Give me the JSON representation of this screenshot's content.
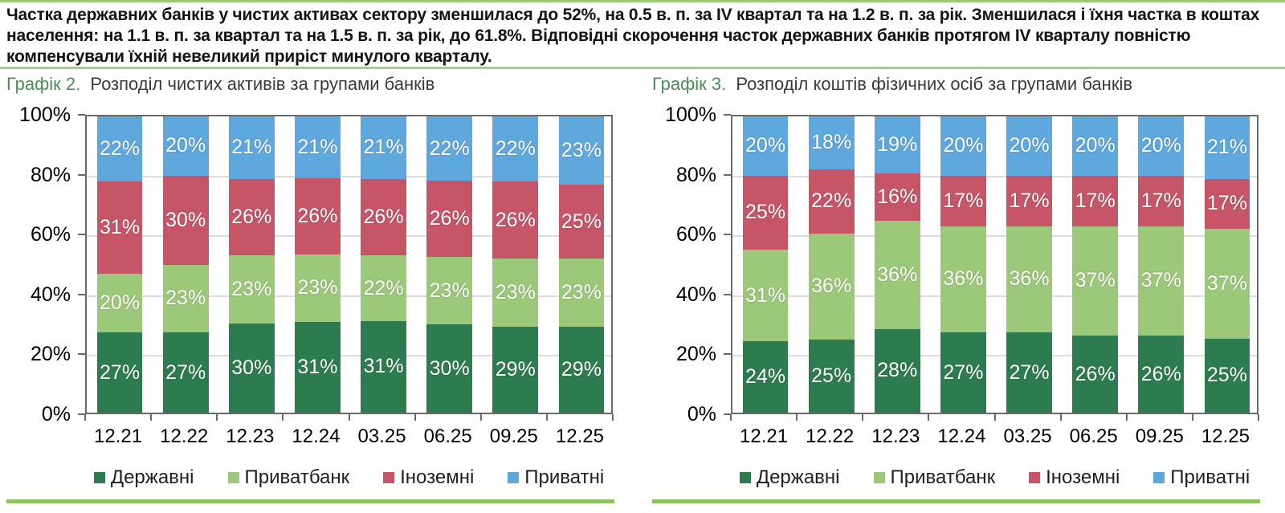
{
  "intro": {
    "text": "Частка державних банків у чистих активах сектору зменшилася до 52%, на 0.5 в. п. за IV квартал та на 1.2 в. п. за рік. Зменшилася і їхня частка в коштах населення: на 1.1 в. п. за квартал та на 1.5 в. п. за рік, до 61.8%. Відповідні скорочення часток державних банків протягом IV кварталу повністю компенсували їхній невеликий приріст минулого кварталу."
  },
  "colors": {
    "accent_green": "#4D8C57",
    "divider_green": "#9CC972",
    "bottom_bar_green": "#8FC162",
    "axis_gray": "#6A6A6A",
    "gridline_gray": "#DCDCDC",
    "state_banks": "#2D7C4F",
    "privatbank": "#9CC87A",
    "foreign_banks": "#C65568",
    "private_banks": "#5FA8DD"
  },
  "chart_data": [
    {
      "type": "bar",
      "stacked": true,
      "label": "Графік 2.",
      "title": "Розподіл чистих активів за групами банків",
      "categories": [
        "12.21",
        "12.22",
        "12.23",
        "12.24",
        "03.25",
        "06.25",
        "09.25",
        "12.25"
      ],
      "series": [
        {
          "name": "Державні",
          "color": "#2D7C4F",
          "values": [
            27,
            27,
            30,
            31,
            31,
            30,
            29,
            29
          ]
        },
        {
          "name": "Приватбанк",
          "color": "#9CC87A",
          "values": [
            20,
            23,
            23,
            23,
            22,
            23,
            23,
            23
          ]
        },
        {
          "name": "Іноземні",
          "color": "#C65568",
          "values": [
            31,
            30,
            26,
            26,
            26,
            26,
            26,
            25
          ]
        },
        {
          "name": "Приватні",
          "color": "#5FA8DD",
          "values": [
            22,
            20,
            21,
            21,
            21,
            22,
            22,
            23
          ]
        }
      ],
      "unit": "%",
      "ylim": [
        0,
        100
      ],
      "yticks": [
        "100%",
        "80%",
        "60%",
        "40%",
        "20%",
        "0%"
      ],
      "grid": true,
      "legend_position": "bottom"
    },
    {
      "type": "bar",
      "stacked": true,
      "label": "Графік 3.",
      "title": "Розподіл коштів фізичних осіб за групами банків",
      "categories": [
        "12.21",
        "12.22",
        "12.23",
        "12.24",
        "03.25",
        "06.25",
        "09.25",
        "12.25"
      ],
      "series": [
        {
          "name": "Державні",
          "color": "#2D7C4F",
          "values": [
            24,
            25,
            28,
            27,
            27,
            26,
            26,
            25
          ]
        },
        {
          "name": "Приватбанк",
          "color": "#9CC87A",
          "values": [
            31,
            36,
            36,
            36,
            36,
            37,
            37,
            37
          ]
        },
        {
          "name": "Іноземні",
          "color": "#C65568",
          "values": [
            25,
            22,
            16,
            17,
            17,
            17,
            17,
            17
          ]
        },
        {
          "name": "Приватні",
          "color": "#5FA8DD",
          "values": [
            20,
            18,
            19,
            20,
            20,
            20,
            20,
            21
          ]
        }
      ],
      "unit": "%",
      "ylim": [
        0,
        100
      ],
      "yticks": [
        "100%",
        "80%",
        "60%",
        "40%",
        "20%",
        "0%"
      ],
      "grid": true,
      "legend_position": "bottom"
    }
  ]
}
